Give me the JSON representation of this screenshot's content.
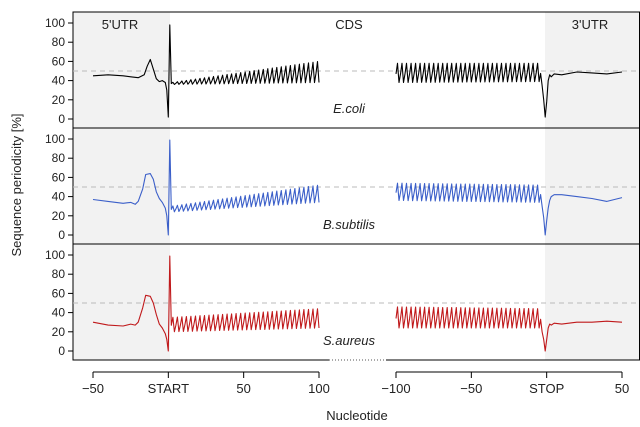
{
  "chart_data": {
    "type": "line",
    "title": "",
    "xlabel": "Nucleotide",
    "ylabel": "Sequence periodicity [%]",
    "ylim": [
      0,
      100
    ],
    "yticks": [
      0,
      20,
      40,
      60,
      80,
      100
    ],
    "reference_line": 50,
    "grid": false,
    "region_labels": [
      "5'UTR",
      "CDS",
      "3'UTR"
    ],
    "segments": [
      {
        "name": "start",
        "xlim": [
          -50,
          100
        ],
        "ticks": [
          -50,
          0,
          50,
          100
        ],
        "tick_labels": [
          "-50",
          "START",
          "50",
          "100"
        ]
      },
      {
        "name": "stop",
        "xlim": [
          -100,
          50
        ],
        "ticks": [
          -100,
          -50,
          0,
          50
        ],
        "tick_labels": [
          "-100",
          "-50",
          "STOP",
          "50"
        ]
      }
    ],
    "series": [
      {
        "name": "E.coli",
        "color": "#000000",
        "start": {
          "utr_x": [
            -50,
            -40,
            -30,
            -25,
            -20,
            -16,
            -14,
            -12,
            -10,
            -8,
            -6,
            -4,
            -2,
            -1,
            0,
            1
          ],
          "utr_y": [
            45,
            46,
            45,
            44,
            43,
            46,
            55,
            62,
            52,
            42,
            39,
            40,
            38,
            30,
            2,
            98
          ],
          "cds_from": 2,
          "cds_to": 100,
          "peak_start": 38,
          "peak_end": 60,
          "trough_start": 36,
          "trough_end": 38
        },
        "stop": {
          "cds_from": -100,
          "cds_to": -4,
          "peak_start": 58,
          "peak_end": 58,
          "trough_start": 38,
          "trough_end": 39,
          "utr_x": [
            -3,
            -2,
            -1,
            0,
            1,
            2,
            3,
            5,
            10,
            20,
            30,
            40,
            50
          ],
          "utr_y": [
            35,
            20,
            2,
            18,
            40,
            46,
            44,
            47,
            46,
            49,
            48,
            47,
            49
          ]
        }
      },
      {
        "name": "B.subtilis",
        "color": "#3b5fc9",
        "start": {
          "utr_x": [
            -50,
            -40,
            -30,
            -25,
            -22,
            -20,
            -17,
            -15,
            -12,
            -10,
            -8,
            -6,
            -4,
            -2,
            -1,
            0,
            1
          ],
          "utr_y": [
            37,
            35,
            33,
            34,
            32,
            35,
            48,
            63,
            64,
            58,
            45,
            38,
            34,
            28,
            20,
            0,
            99
          ],
          "cds_from": 2,
          "cds_to": 100,
          "peak_start": 30,
          "peak_end": 52,
          "trough_start": 24,
          "trough_end": 34
        },
        "stop": {
          "cds_from": -100,
          "cds_to": -4,
          "peak_start": 54,
          "peak_end": 52,
          "trough_start": 36,
          "trough_end": 34,
          "utr_x": [
            -3,
            -2,
            -1,
            0,
            1,
            2,
            3,
            5,
            10,
            20,
            30,
            40,
            50
          ],
          "utr_y": [
            30,
            18,
            0,
            15,
            28,
            36,
            40,
            42,
            42,
            40,
            38,
            35,
            39
          ]
        }
      },
      {
        "name": "S.aureus",
        "color": "#c0191b",
        "start": {
          "utr_x": [
            -50,
            -40,
            -30,
            -25,
            -22,
            -20,
            -17,
            -15,
            -12,
            -10,
            -8,
            -6,
            -4,
            -2,
            -1,
            0,
            1
          ],
          "utr_y": [
            30,
            27,
            26,
            28,
            27,
            30,
            45,
            58,
            57,
            50,
            38,
            28,
            24,
            18,
            12,
            0,
            99
          ],
          "cds_from": 2,
          "cds_to": 100,
          "peak_start": 35,
          "peak_end": 44,
          "trough_start": 20,
          "trough_end": 24
        },
        "stop": {
          "cds_from": -100,
          "cds_to": -4,
          "peak_start": 46,
          "peak_end": 44,
          "trough_start": 24,
          "trough_end": 24,
          "utr_x": [
            -3,
            -2,
            -1,
            0,
            1,
            2,
            3,
            5,
            10,
            20,
            30,
            40,
            50
          ],
          "utr_y": [
            20,
            12,
            0,
            12,
            24,
            28,
            27,
            29,
            28,
            30,
            30,
            31,
            30
          ]
        }
      }
    ]
  }
}
